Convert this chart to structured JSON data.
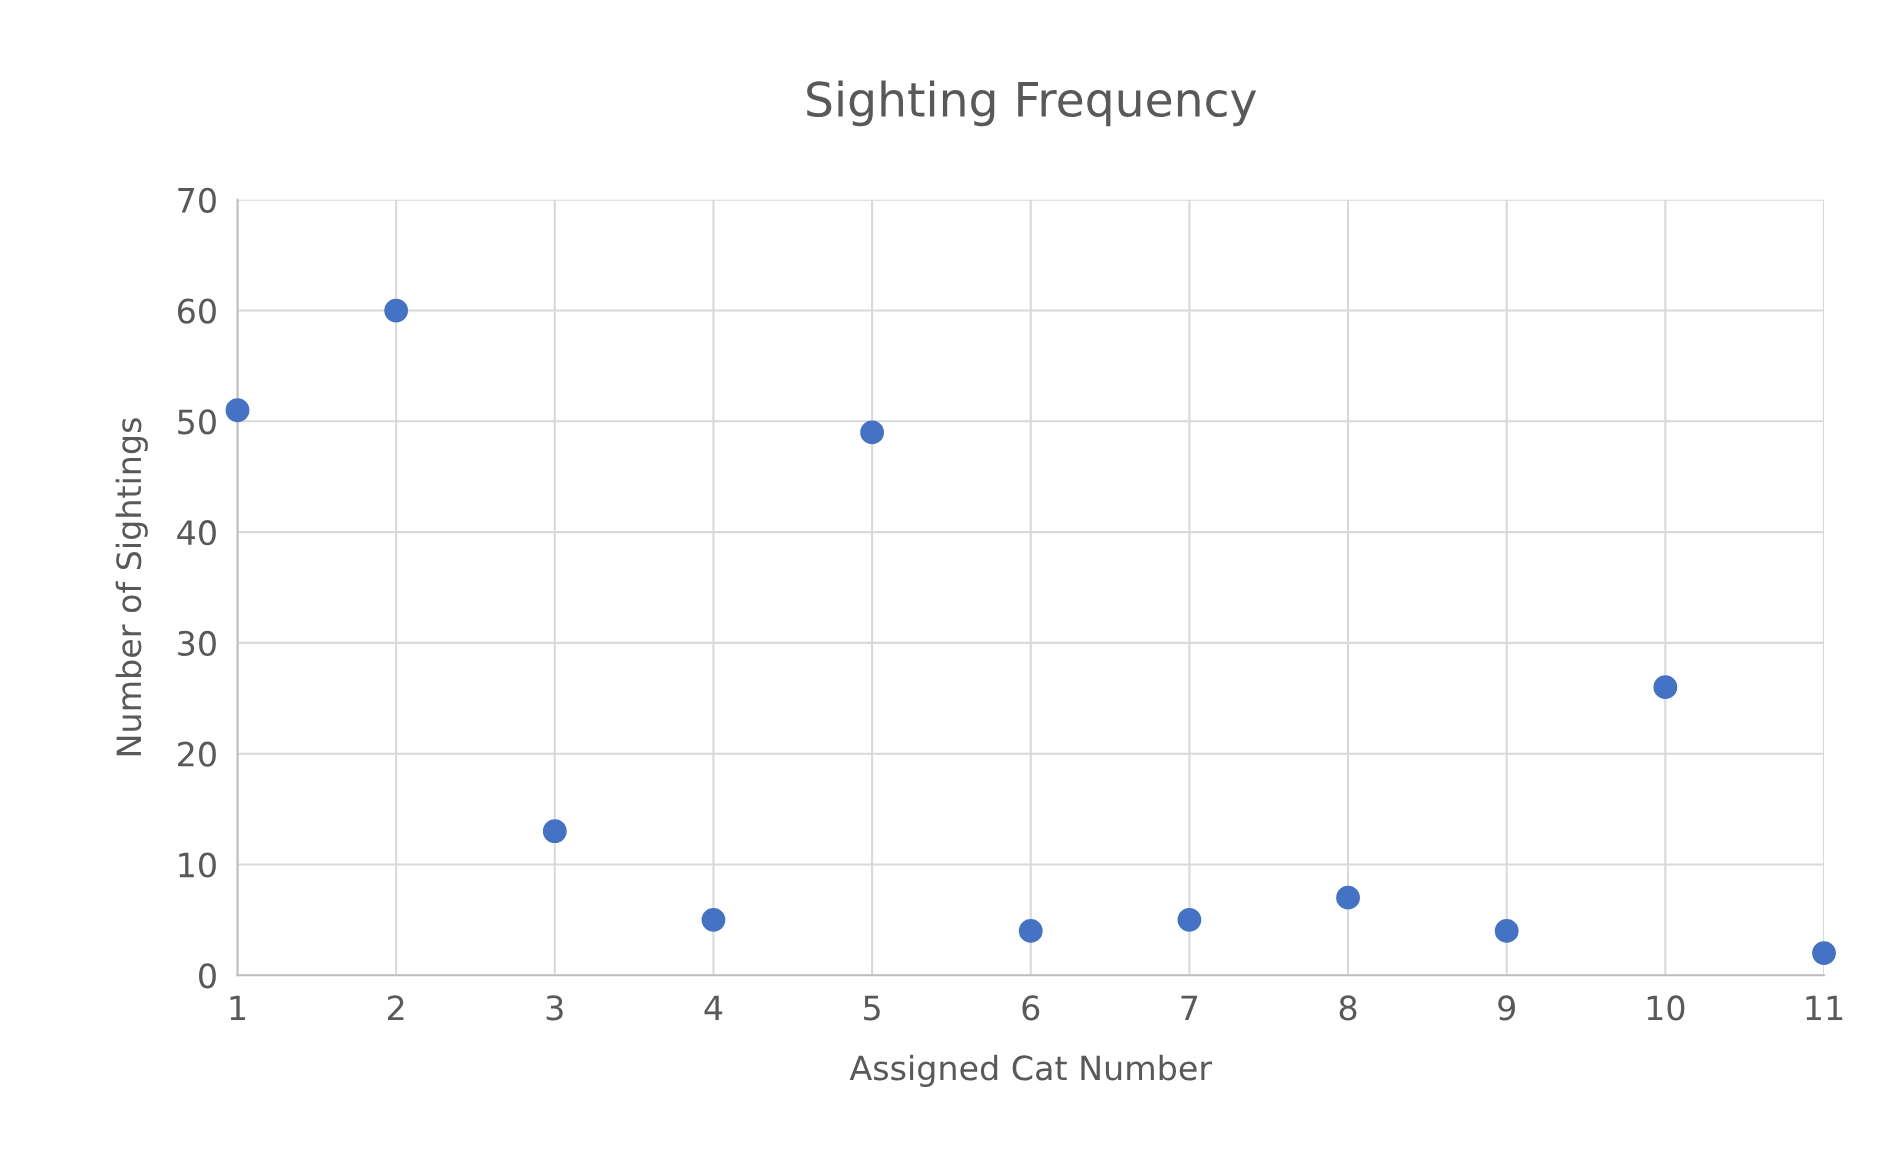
{
  "chart_data": {
    "type": "scatter",
    "title": "Sighting Frequency",
    "xlabel": "Assigned Cat Number",
    "ylabel": "Number of Sightings",
    "x": [
      1,
      2,
      3,
      4,
      5,
      6,
      7,
      8,
      9,
      10,
      11
    ],
    "series": [
      {
        "color": "#4472c4",
        "values": [
          51,
          60,
          13,
          5,
          49,
          4,
          5,
          7,
          4,
          26,
          2
        ]
      }
    ],
    "xlim": [
      1,
      11
    ],
    "xticks": [
      1,
      2,
      3,
      4,
      5,
      6,
      7,
      8,
      9,
      10,
      11
    ],
    "ylim": [
      0,
      70
    ],
    "yticks": [
      0,
      10,
      20,
      30,
      40,
      50,
      60,
      70
    ],
    "grid": true,
    "marker": "circle",
    "legend": false
  }
}
